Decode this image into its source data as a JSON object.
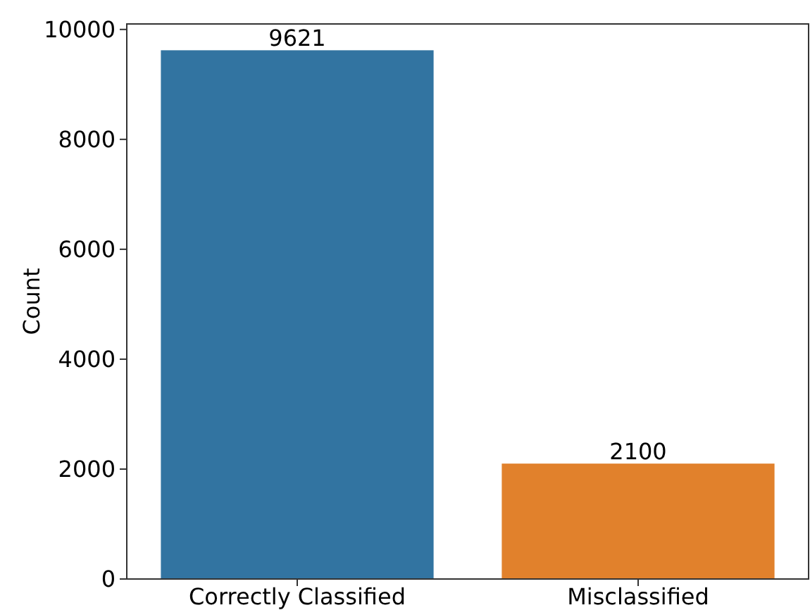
{
  "chart_data": {
    "type": "bar",
    "ylabel": "Count",
    "categories": [
      "Correctly Classified",
      "Misclassified"
    ],
    "values": [
      9621,
      2100
    ],
    "colors": [
      "#3274a1",
      "#e1812c"
    ],
    "ylim": [
      0,
      10100
    ],
    "yticks": [
      0,
      2000,
      4000,
      6000,
      8000,
      10000
    ],
    "data_labels": true,
    "grid": false
  }
}
